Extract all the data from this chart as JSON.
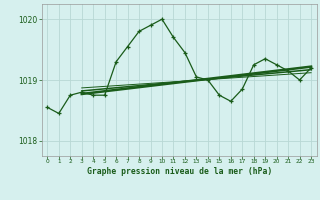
{
  "title": "Graphe pression niveau de la mer (hPa)",
  "bg_color": "#d6f0ee",
  "grid_color": "#b8d8d4",
  "line_color": "#1a5c1a",
  "xlim": [
    -0.5,
    23.5
  ],
  "ylim": [
    1017.75,
    1020.25
  ],
  "yticks": [
    1018,
    1019,
    1020
  ],
  "xticks": [
    0,
    1,
    2,
    3,
    4,
    5,
    6,
    7,
    8,
    9,
    10,
    11,
    12,
    13,
    14,
    15,
    16,
    17,
    18,
    19,
    20,
    21,
    22,
    23
  ],
  "hours": [
    0,
    1,
    2,
    3,
    4,
    5,
    6,
    7,
    8,
    9,
    10,
    11,
    12,
    13,
    14,
    15,
    16,
    17,
    18,
    19,
    20,
    21,
    22,
    23
  ],
  "pressure_main": [
    1018.55,
    1018.45,
    1018.75,
    1018.8,
    1018.75,
    1018.75,
    1019.3,
    1019.55,
    1019.8,
    1019.9,
    1020.0,
    1019.7,
    1019.45,
    1019.05,
    1019.0,
    1018.75,
    1018.65,
    1018.85,
    1019.25,
    1019.35,
    1019.25,
    1019.15,
    1019.0,
    1019.2
  ],
  "trend1_x": [
    3,
    23
  ],
  "trend1_y": [
    1018.77,
    1019.22
  ],
  "trend2_x": [
    3,
    23
  ],
  "trend2_y": [
    1018.82,
    1019.17
  ],
  "trend3_x": [
    3,
    23
  ],
  "trend3_y": [
    1018.87,
    1019.12
  ]
}
